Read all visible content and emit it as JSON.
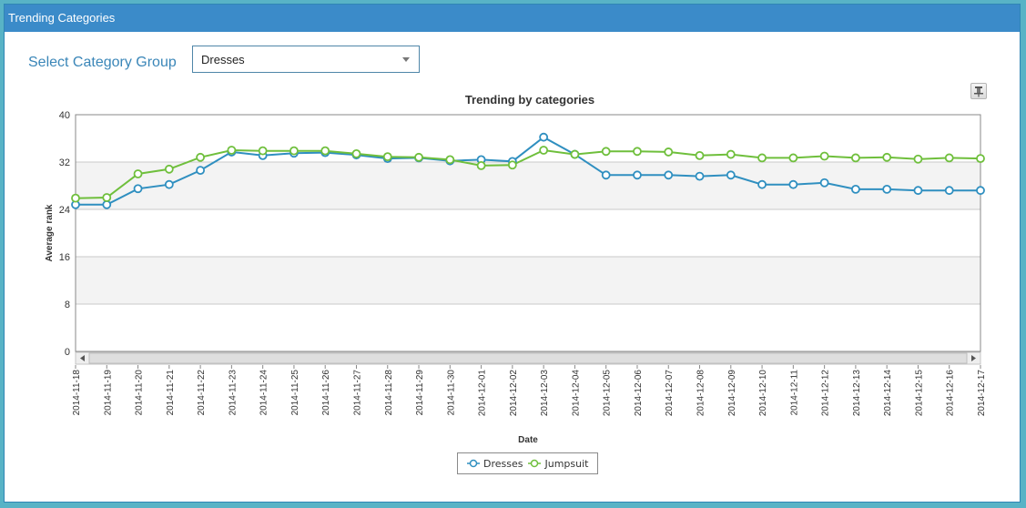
{
  "window": {
    "title": "Trending Categories"
  },
  "filter": {
    "label": "Select Category Group",
    "selected": "Dresses"
  },
  "toolbar": {
    "tool_icon": "pin-icon"
  },
  "colors": {
    "Dresses": "#2f8fc0",
    "Jumpsuit": "#6fbf3c",
    "header": "#3b8bc9",
    "band": "#f3f3f3"
  },
  "chart_data": {
    "type": "line",
    "title": "Trending by categories",
    "xlabel": "Date",
    "ylabel": "Average rank",
    "ylim": [
      0,
      40
    ],
    "yticks": [
      0,
      8,
      16,
      24,
      32,
      40
    ],
    "grid": true,
    "legend_position": "bottom-center",
    "categories": [
      "2014-11-18",
      "2014-11-19",
      "2014-11-20",
      "2014-11-21",
      "2014-11-22",
      "2014-11-23",
      "2014-11-24",
      "2014-11-25",
      "2014-11-26",
      "2014-11-27",
      "2014-11-28",
      "2014-11-29",
      "2014-11-30",
      "2014-12-01",
      "2014-12-02",
      "2014-12-03",
      "2014-12-04",
      "2014-12-05",
      "2014-12-06",
      "2014-12-07",
      "2014-12-08",
      "2014-12-09",
      "2014-12-10",
      "2014-12-11",
      "2014-12-12",
      "2014-12-13",
      "2014-12-14",
      "2014-12-15",
      "2014-12-16",
      "2014-12-17"
    ],
    "series": [
      {
        "name": "Dresses",
        "values": [
          24.8,
          24.8,
          27.5,
          28.2,
          30.6,
          33.7,
          33.1,
          33.5,
          33.6,
          33.2,
          32.6,
          32.7,
          32.2,
          32.4,
          32.1,
          36.2,
          33.3,
          29.8,
          29.8,
          29.8,
          29.6,
          29.8,
          28.2,
          28.2,
          28.5,
          27.4,
          27.4,
          27.2,
          27.2,
          27.2
        ]
      },
      {
        "name": "Jumpsuit",
        "values": [
          25.9,
          26.0,
          30.0,
          30.8,
          32.8,
          34.0,
          33.9,
          33.9,
          33.9,
          33.4,
          32.9,
          32.8,
          32.4,
          31.4,
          31.5,
          34.0,
          33.3,
          33.8,
          33.8,
          33.7,
          33.1,
          33.3,
          32.7,
          32.7,
          33.0,
          32.7,
          32.8,
          32.5,
          32.7,
          32.6
        ]
      }
    ]
  }
}
